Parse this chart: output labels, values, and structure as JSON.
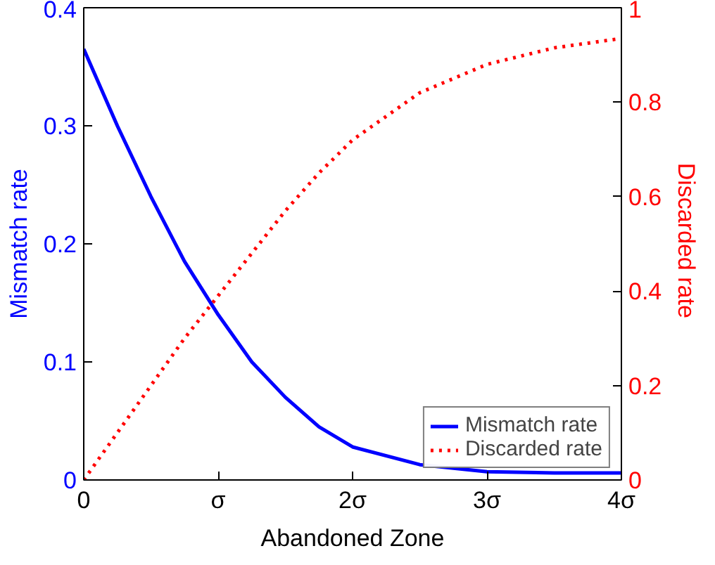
{
  "chart_data": {
    "type": "line",
    "xlabel": "Abandoned Zone",
    "ylabel": "Mismatch rate",
    "y2label": "Discarded  rate",
    "x": [
      0,
      0.25,
      0.5,
      0.75,
      1,
      1.25,
      1.5,
      1.75,
      2,
      2.5,
      3,
      3.5,
      4
    ],
    "xlim": [
      0,
      4
    ],
    "xticks": [
      0,
      {
        "value": 1,
        "label": "σ"
      },
      {
        "value": 2,
        "label": "2σ"
      },
      {
        "value": 3,
        "label": "3σ"
      },
      {
        "value": 4,
        "label": "4σ"
      }
    ],
    "ylim": [
      0,
      0.4
    ],
    "yticks": [
      0,
      0.1,
      0.2,
      0.3,
      0.4
    ],
    "y2lim": [
      0,
      1
    ],
    "y2ticks": [
      0,
      0.2,
      0.4,
      0.6,
      0.8,
      1
    ],
    "series": [
      {
        "name": "Mismatch rate",
        "color": "#0000ff",
        "line_style": "solid",
        "values": [
          0.365,
          0.3,
          0.24,
          0.185,
          0.14,
          0.1,
          0.07,
          0.045,
          0.028,
          0.013,
          0.007,
          0.006,
          0.006
        ]
      },
      {
        "name": "Discarded rate",
        "color": "#ff0000",
        "line_style": "dotted",
        "axis": "y2",
        "values": [
          0,
          0.1,
          0.2,
          0.3,
          0.39,
          0.48,
          0.57,
          0.65,
          0.72,
          0.82,
          0.88,
          0.915,
          0.935
        ]
      }
    ],
    "legend": "bottom right",
    "grid": false
  }
}
